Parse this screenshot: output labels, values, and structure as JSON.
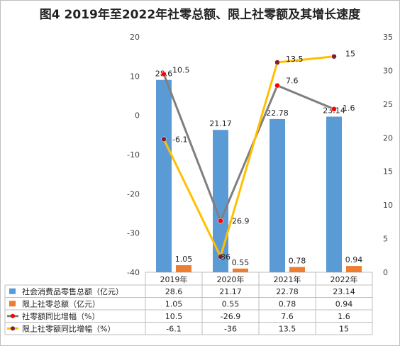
{
  "title": "图4 2019年至2022年社零总额、限上社零额及其增长速度",
  "chart_data": {
    "type": "bar",
    "categories": [
      "2019年",
      "2020年",
      "2021年",
      "2022年"
    ],
    "left_axis": {
      "ticks": [
        "-40",
        "-30",
        "-20",
        "-10",
        "0",
        "10",
        "20"
      ],
      "ylim": [
        -40,
        20
      ]
    },
    "right_axis": {
      "ticks": [
        "0",
        "5",
        "10",
        "15",
        "20",
        "25",
        "30",
        "35"
      ],
      "ylim": [
        0,
        35
      ]
    },
    "series": [
      {
        "name": "社会消费品零售总额（亿元）",
        "kind": "bar",
        "axis": "right",
        "color": "#5b9bd5",
        "values": [
          28.6,
          21.17,
          22.78,
          23.14
        ],
        "labels": [
          "28.6",
          "21.17",
          "22.78",
          "23.14"
        ]
      },
      {
        "name": "限上社零总额（亿元）",
        "kind": "bar",
        "axis": "right",
        "color": "#ed7d31",
        "values": [
          1.05,
          0.55,
          0.78,
          0.94
        ],
        "labels": [
          "1.05",
          "0.55",
          "0.78",
          "0.94"
        ]
      },
      {
        "name": "社零额同比增幅（%）",
        "kind": "line",
        "axis": "left",
        "color": "#7f7f7f",
        "marker": "#ff0000",
        "values": [
          10.5,
          -26.9,
          7.6,
          1.6
        ],
        "labels": [
          "10.5",
          "-26.9",
          "7.6",
          "1.6"
        ]
      },
      {
        "name": "限上社零额同比增幅（%）",
        "kind": "line",
        "axis": "left",
        "color": "#ffc000",
        "marker": "#7f1f2f",
        "values": [
          -6.1,
          -36,
          13.5,
          15
        ],
        "labels": [
          "-6.1",
          "-36",
          "13.5",
          "15"
        ]
      }
    ],
    "table": [
      [
        "28.6",
        "21.17",
        "22.78",
        "23.14"
      ],
      [
        "1.05",
        "0.55",
        "0.78",
        "0.94"
      ],
      [
        "10.5",
        "-26.9",
        "7.6",
        "1.6"
      ],
      [
        "-6.1",
        "-36",
        "13.5",
        "15"
      ]
    ]
  }
}
